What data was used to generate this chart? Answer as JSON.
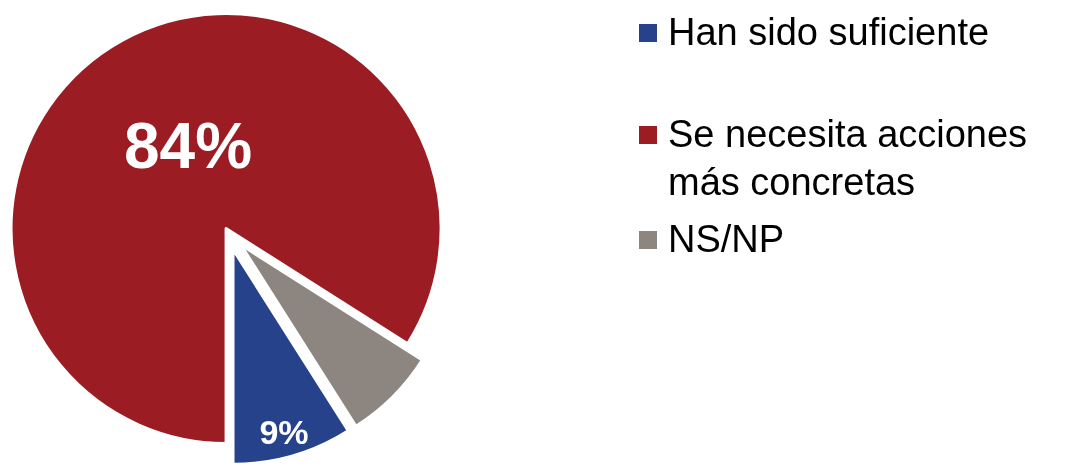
{
  "chart_data": {
    "type": "pie",
    "categories": [
      "Han sido suficiente",
      "Se necesita acciones más concretas",
      "NS/NP"
    ],
    "values": [
      9,
      84,
      7
    ],
    "colors": [
      "#26428b",
      "#9b1c23",
      "#8c8580"
    ],
    "value_labels": [
      "9%",
      "84%",
      null
    ],
    "legend": "right"
  }
}
